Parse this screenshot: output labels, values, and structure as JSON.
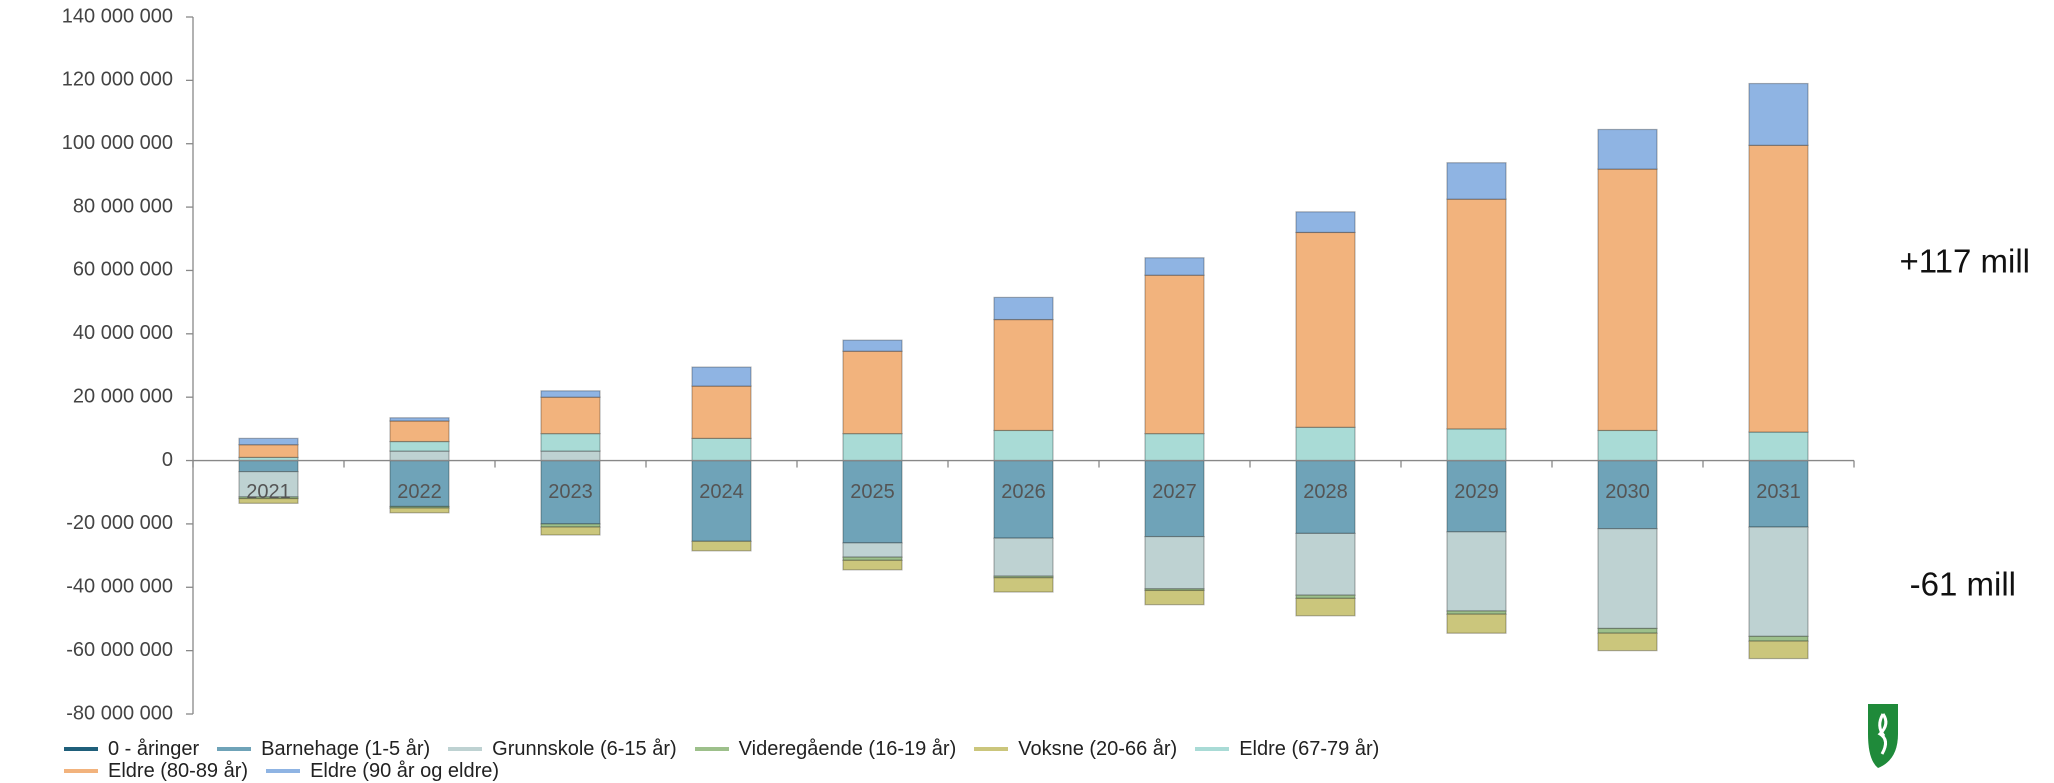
{
  "chart_data": {
    "type": "stacked_bar",
    "categories": [
      "2021",
      "2022",
      "2023",
      "2024",
      "2025",
      "2026",
      "2027",
      "2028",
      "2029",
      "2030",
      "2031"
    ],
    "series": [
      {
        "name": "0 - åringer",
        "color": "#1f5f7a",
        "values": [
          0,
          0,
          0,
          0,
          0,
          0,
          0,
          0,
          0,
          0,
          0
        ]
      },
      {
        "name": "Barnehage (1-5 år)",
        "color": "#6fa3b8",
        "values": [
          -3500000,
          -14500000,
          -20000000,
          -25500000,
          -26000000,
          -24500000,
          -24000000,
          -23000000,
          -22500000,
          -21500000,
          -21000000
        ]
      },
      {
        "name": "Grunnskole (6-15 år)",
        "color": "#bed2d2",
        "values": [
          -8000000,
          3000000,
          3000000,
          0,
          -4500000,
          -12000000,
          -16500000,
          -19500000,
          -25000000,
          -31500000,
          -34500000
        ]
      },
      {
        "name": "Videregående (16-19 år)",
        "color": "#9dc08b",
        "values": [
          -500000,
          -500000,
          -1000000,
          0,
          -1000000,
          -500000,
          -500000,
          -1000000,
          -1000000,
          -1500000,
          -1500000
        ]
      },
      {
        "name": "Voksne (20-66 år)",
        "color": "#cbc67c",
        "values": [
          -1500000,
          -1500000,
          -2500000,
          -3000000,
          -3000000,
          -4500000,
          -4500000,
          -5500000,
          -6000000,
          -5500000,
          -5500000
        ]
      },
      {
        "name": "Eldre (67-79 år)",
        "color": "#a9dbd6",
        "values": [
          1000000,
          3000000,
          5500000,
          7000000,
          8500000,
          9500000,
          8500000,
          10500000,
          10000000,
          9500000,
          9000000
        ]
      },
      {
        "name": "Eldre (80-89 år)",
        "color": "#f2b37d",
        "values": [
          4000000,
          6500000,
          11500000,
          16500000,
          26000000,
          35000000,
          50000000,
          61500000,
          72500000,
          82500000,
          90500000
        ]
      },
      {
        "name": "Eldre (90 år og eldre)",
        "color": "#8fb4e3",
        "values": [
          2000000,
          1000000,
          2000000,
          6000000,
          3500000,
          7000000,
          5500000,
          6500000,
          11500000,
          12500000,
          19500000
        ]
      }
    ],
    "ylim": [
      -80000000,
      140000000
    ],
    "yticks": [
      {
        "value": -80000000,
        "label": "-80 000 000"
      },
      {
        "value": -60000000,
        "label": "-60 000 000"
      },
      {
        "value": -40000000,
        "label": "-40 000 000"
      },
      {
        "value": -20000000,
        "label": "-20 000 000"
      },
      0,
      {
        "value": 20000000,
        "label": "20 000 000"
      },
      {
        "value": 40000000,
        "label": "40 000 000"
      },
      {
        "value": 60000000,
        "label": "60 000 000"
      },
      {
        "value": 80000000,
        "label": "80 000 000"
      },
      {
        "value": 100000000,
        "label": "100 000 000"
      },
      {
        "value": 120000000,
        "label": "120 000 000"
      },
      {
        "value": 140000000,
        "label": "140 000 000"
      }
    ],
    "annotations": [
      "+117 mill",
      "-61 mill"
    ]
  }
}
